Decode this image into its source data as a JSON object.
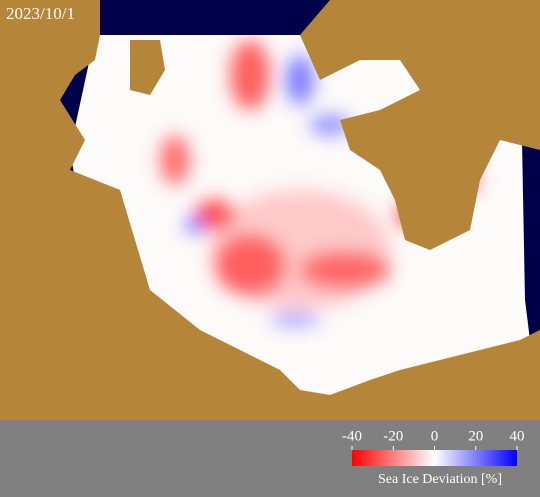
{
  "date": "2023/10/1",
  "colorbar": {
    "label": "Sea Ice Deviation [%]",
    "lim": [
      -40,
      40
    ],
    "ticks": [
      -40,
      -20,
      0,
      20,
      40
    ],
    "colors": [
      "#ff0000",
      "#ffffff",
      "#0000ff"
    ]
  }
}
